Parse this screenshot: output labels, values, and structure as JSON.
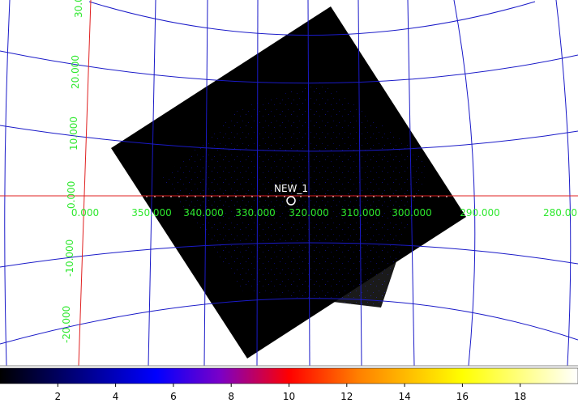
{
  "image": {
    "marker_label": "NEW_1",
    "x_labels": [
      "0.000",
      "350.000",
      "340.000",
      "330.000",
      "320.000",
      "310.000",
      "300.000",
      "290.000",
      "280.00"
    ],
    "y_labels": [
      "30.0",
      "20.000",
      "10.000",
      "0.000",
      "-10.000",
      "-20.000"
    ]
  },
  "colorbar": {
    "range": [
      0,
      20
    ],
    "ticks": [
      2,
      4,
      6,
      8,
      10,
      12,
      14,
      16,
      18
    ]
  }
}
